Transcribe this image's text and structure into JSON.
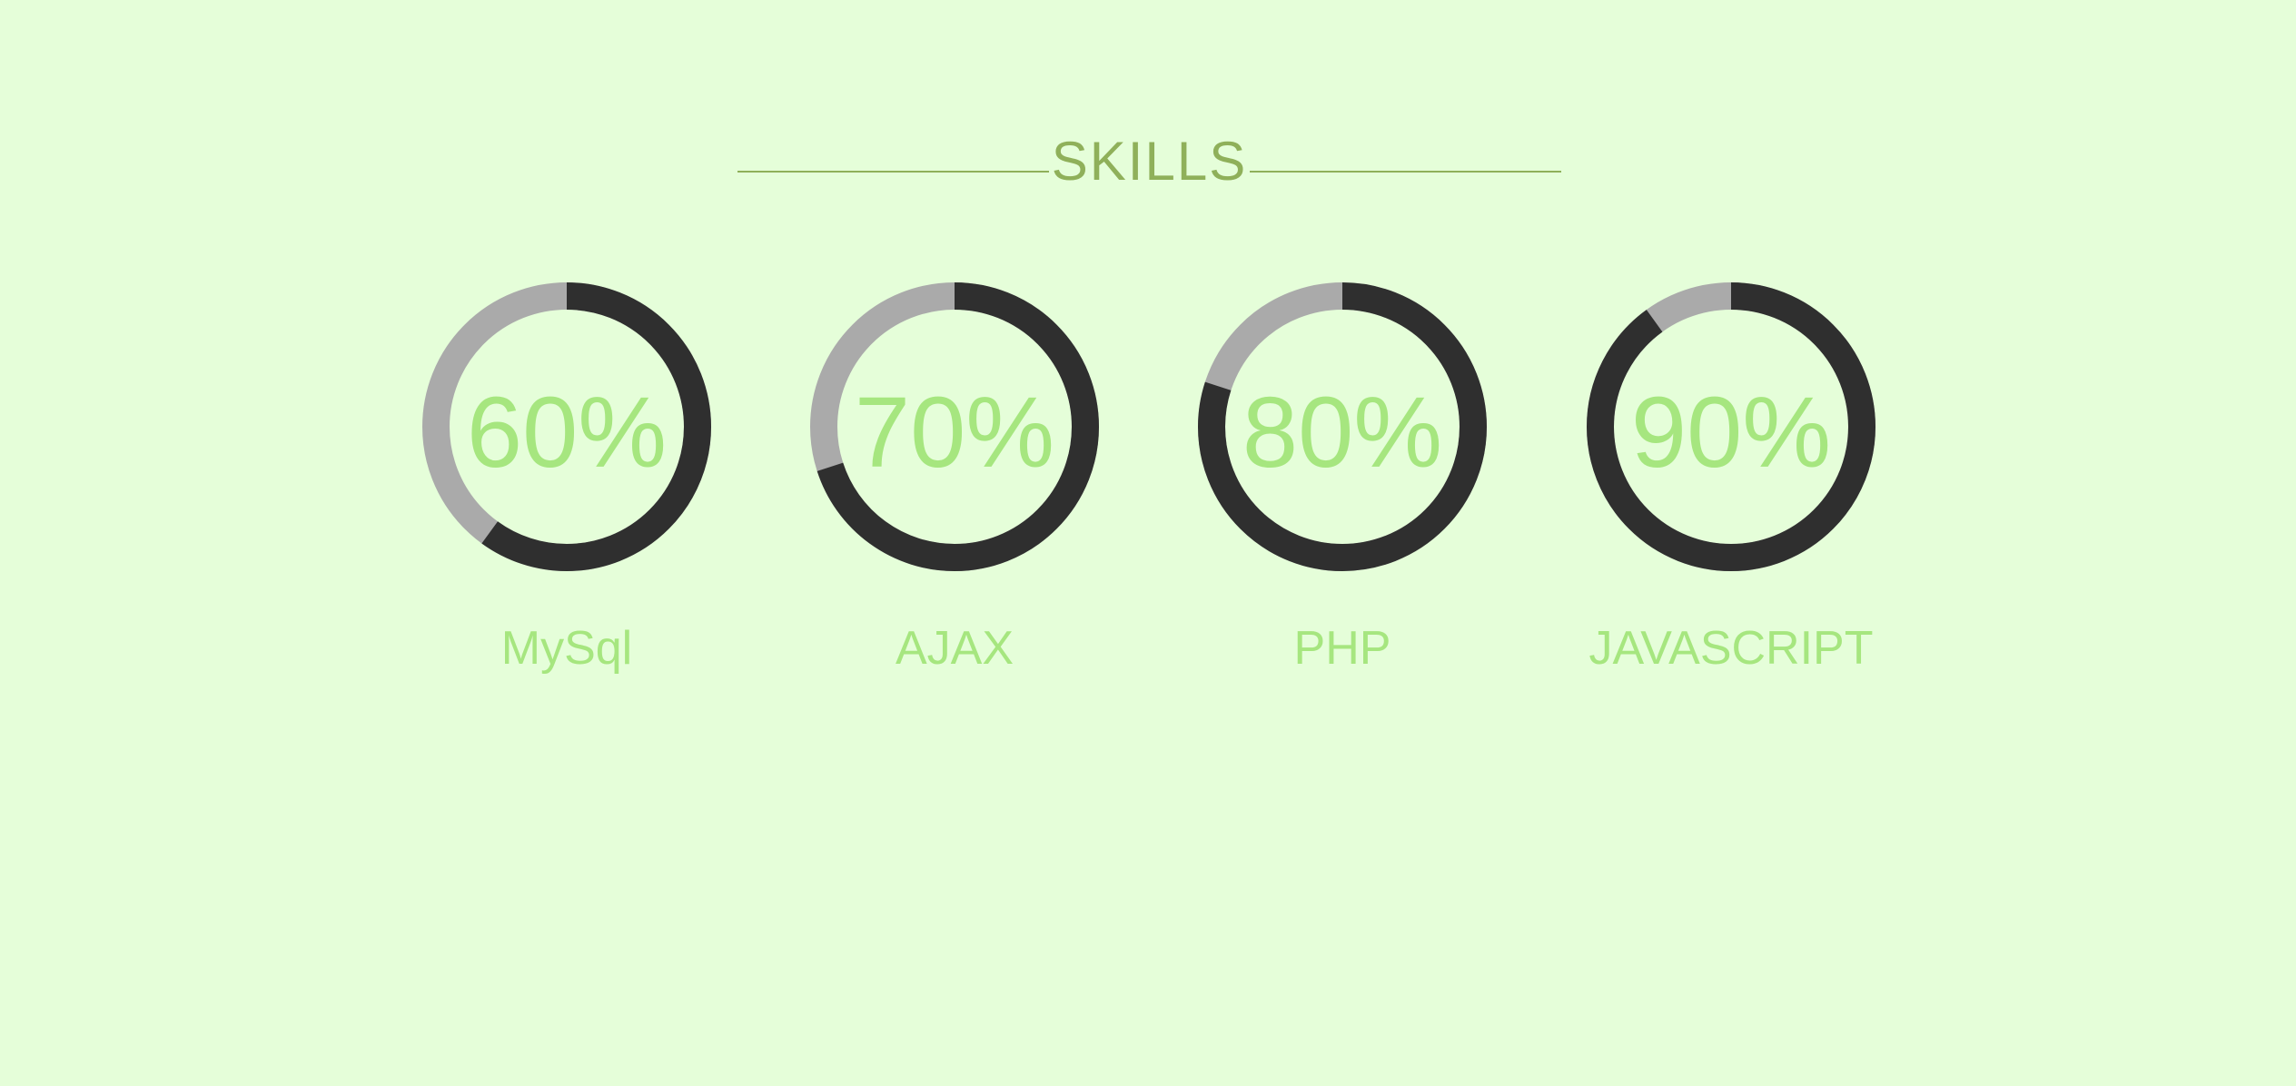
{
  "title": "SKILLS",
  "colors": {
    "background": "#e5fed9",
    "title": "#8fb05a",
    "text": "#a6e67f",
    "progress": "#2f2f2f",
    "track": "#aaaaaa"
  },
  "skills": [
    {
      "name": "MySql",
      "percent_label": "60%",
      "percent": 60
    },
    {
      "name": "AJAX",
      "percent_label": "70%",
      "percent": 70
    },
    {
      "name": "PHP",
      "percent_label": "80%",
      "percent": 80
    },
    {
      "name": "JAVASCRIPT",
      "percent_label": "90%",
      "percent": 90
    }
  ]
}
